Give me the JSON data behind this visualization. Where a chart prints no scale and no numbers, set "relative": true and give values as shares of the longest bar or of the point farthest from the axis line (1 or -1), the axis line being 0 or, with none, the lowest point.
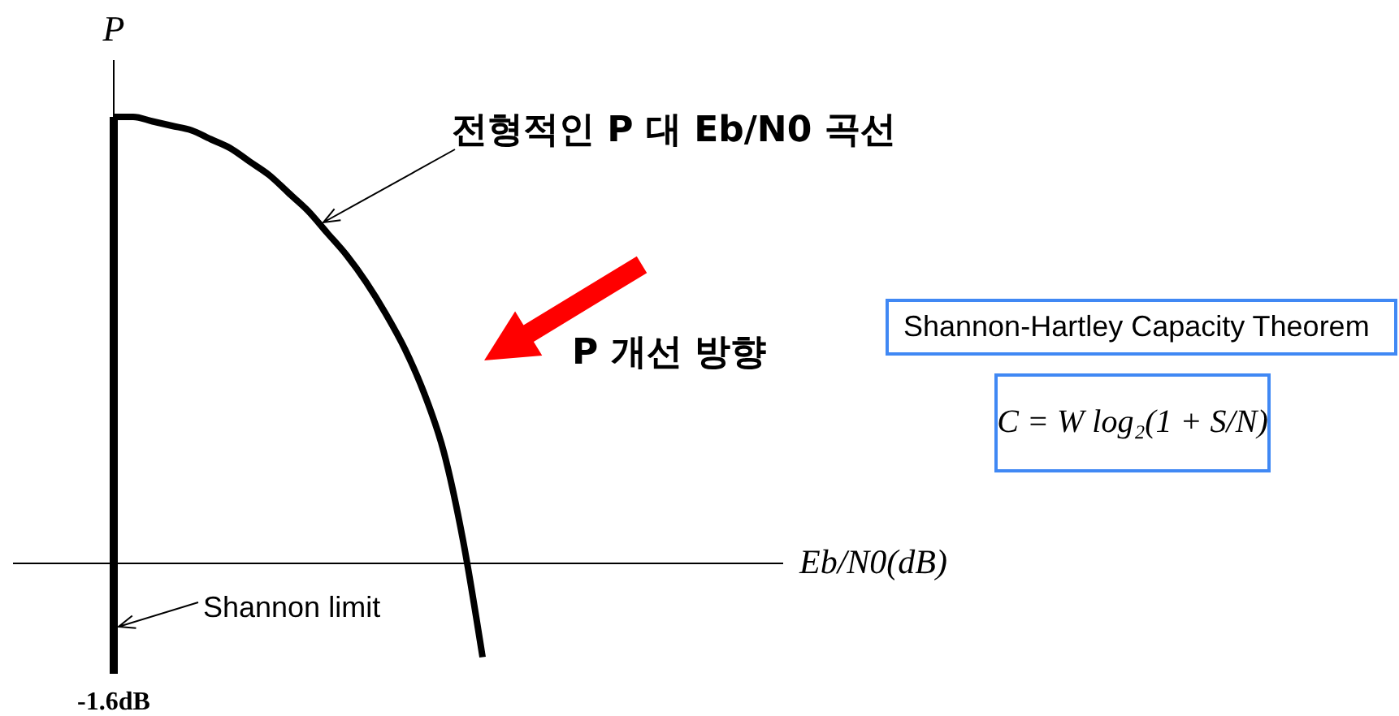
{
  "chart_data": {
    "type": "line",
    "relative": true,
    "ylabel": "P",
    "categories": [
      null,
      null,
      null,
      null,
      null,
      null,
      null,
      null,
      null,
      null,
      null,
      null,
      null,
      null,
      null,
      null,
      null,
      null,
      null,
      null
    ],
    "series": [
      {
        "color": "#000000",
        "values": [
          1,
          1,
          0.99,
          0.98,
          0.97,
          0.95,
          0.93,
          0.9,
          0.87,
          0.83,
          0.79,
          0.74,
          0.69,
          0.63,
          0.56,
          0.48,
          0.38,
          0.25,
          0.05,
          -0.21
        ]
      }
    ],
    "ref_lines": [
      {
        "axis": "x",
        "value": "-1.6dB",
        "label": "Shannon limit",
        "color": "#000000"
      }
    ],
    "annotations": [
      "전형적인 P 대 Eb/N0 곡선",
      "P 개선 방향",
      "Shannon-Hartley Capacity Theorem",
      "C = W log₂(1 + S/N)",
      "Eb/N0(dB)"
    ]
  }
}
